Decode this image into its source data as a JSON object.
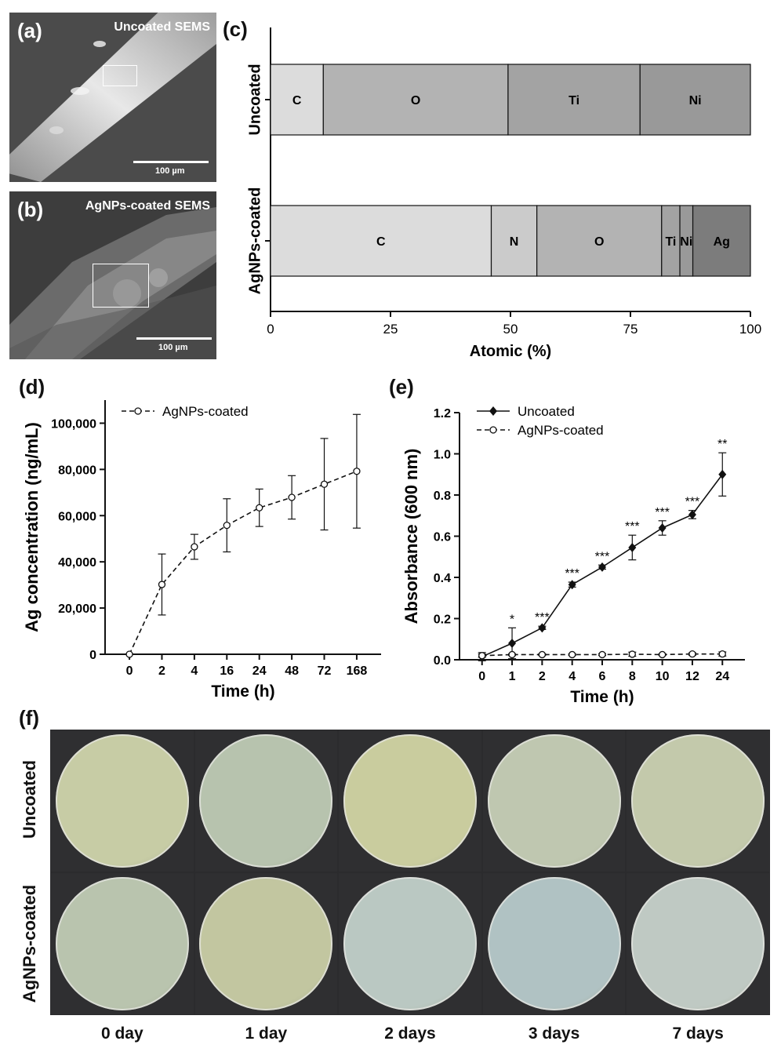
{
  "panels": {
    "a": {
      "label": "(a)",
      "title": "Uncoated SEMS",
      "scale": "100 µm"
    },
    "b": {
      "label": "(b)",
      "title": "AgNPs-coated SEMS",
      "scale": "100 µm"
    },
    "c": {
      "label": "(c)"
    },
    "d": {
      "label": "(d)"
    },
    "e": {
      "label": "(e)"
    },
    "f": {
      "label": "(f)",
      "rows": [
        "Uncoated",
        "AgNPs-coated"
      ],
      "columns": [
        "0 day",
        "1 day",
        "2 days",
        "3 days",
        "7 days"
      ]
    }
  },
  "colors": {
    "C": "#dcdcdc",
    "N": "#cbcbcb",
    "O": "#b3b3b3",
    "Ti": "#a3a3a3",
    "Ni": "#999999",
    "Ag": "#7c7c7c"
  },
  "chart_data": [
    {
      "id": "c",
      "type": "bar",
      "orientation": "horizontal",
      "stacked": true,
      "categories": [
        "Uncoated",
        "AgNPs-coated"
      ],
      "series": [
        {
          "name": "C",
          "values": [
            11.0,
            46.0
          ]
        },
        {
          "name": "N",
          "values": [
            0,
            9.5
          ]
        },
        {
          "name": "O",
          "values": [
            38.5,
            26.0
          ]
        },
        {
          "name": "Ti",
          "values": [
            27.5,
            3.8
          ]
        },
        {
          "name": "Ni",
          "values": [
            23.0,
            2.7
          ]
        },
        {
          "name": "Ag",
          "values": [
            0,
            12.0
          ]
        }
      ],
      "xlabel": "Atomic (%)",
      "ylabel": "",
      "xlim": [
        0,
        100
      ],
      "xticks": [
        "0",
        "25",
        "50",
        "75",
        "100"
      ]
    },
    {
      "id": "d",
      "type": "line",
      "x": [
        "0",
        "2",
        "4",
        "16",
        "24",
        "48",
        "72",
        "168"
      ],
      "series": [
        {
          "name": "AgNPs-coated",
          "values": [
            0,
            30200,
            46500,
            55800,
            63400,
            67900,
            73600,
            79200
          ],
          "error": [
            0,
            13200,
            5400,
            11500,
            8100,
            9400,
            19800,
            24600
          ]
        }
      ],
      "xlabel": "Time (h)",
      "ylabel": "Ag concentration (ng/mL)",
      "ylim": [
        0,
        110000
      ],
      "yticks": [
        "0",
        "20,000",
        "40,000",
        "60,000",
        "80,000",
        "100,000"
      ],
      "legend": "top-left"
    },
    {
      "id": "e",
      "type": "line",
      "x": [
        "0",
        "1",
        "2",
        "4",
        "6",
        "8",
        "10",
        "12",
        "24"
      ],
      "series": [
        {
          "name": "Uncoated",
          "values": [
            0.015,
            0.08,
            0.155,
            0.365,
            0.45,
            0.545,
            0.64,
            0.705,
            0.9
          ],
          "error": [
            0.02,
            0.075,
            0.008,
            0.012,
            0.01,
            0.06,
            0.035,
            0.02,
            0.105
          ]
        },
        {
          "name": "AgNPs-coated",
          "values": [
            0.02,
            0.025,
            0.025,
            0.025,
            0.025,
            0.027,
            0.025,
            0.028,
            0.028
          ],
          "error": [
            0.008,
            0.004,
            0.004,
            0.004,
            0.004,
            0.01,
            0.004,
            0.006,
            0.01
          ]
        }
      ],
      "significance": [
        "",
        "*",
        "***",
        "***",
        "***",
        "***",
        "***",
        "***",
        "**"
      ],
      "xlabel": "Time (h)",
      "ylabel": "Absorbance (600 nm)",
      "ylim": [
        0,
        1.2
      ],
      "yticks": [
        "0.0",
        "0.2",
        "0.4",
        "0.6",
        "0.8",
        "1.0",
        "1.2"
      ],
      "legend": "top-left"
    }
  ]
}
